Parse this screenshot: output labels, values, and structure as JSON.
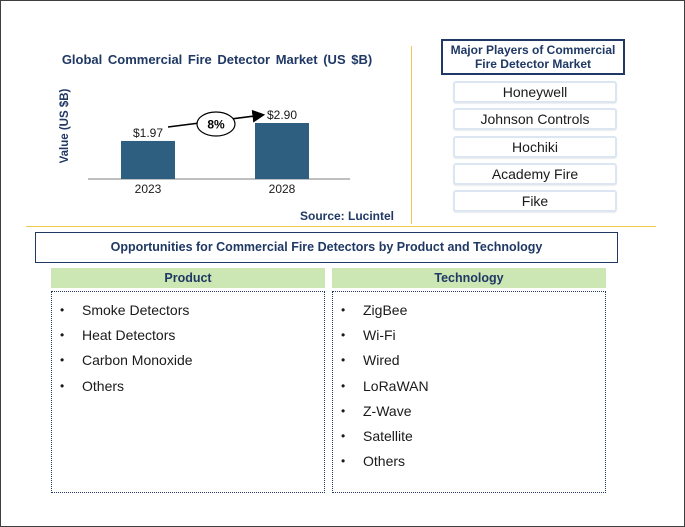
{
  "chart_data": {
    "type": "bar",
    "title": "Global  Commercial  Fire Detector Market  (US $B)",
    "ylabel": "Value (US $B)",
    "xlabel": "",
    "categories": [
      "2023",
      "2028"
    ],
    "values": [
      1.97,
      2.9
    ],
    "value_labels": [
      "$1.97",
      "$2.90"
    ],
    "ylim": [
      0,
      3.2
    ],
    "grid": false,
    "legend": "none",
    "bar_color": "#2e5e80",
    "growth_annotation": "8%"
  },
  "source": "Source: Lucintel",
  "players": {
    "title": "Major Players of Commercial Fire Detector Market",
    "items": [
      "Honeywell",
      "Johnson Controls",
      "Hochiki",
      "Academy Fire",
      "Fike"
    ]
  },
  "opportunities": {
    "title": "Opportunities for Commercial Fire Detectors by Product and Technology",
    "bullet": "•",
    "product": {
      "header": "Product",
      "items": [
        "Smoke Detectors",
        "Heat Detectors",
        "Carbon Monoxide",
        "Others"
      ]
    },
    "technology": {
      "header": "Technology",
      "items": [
        "ZigBee",
        "Wi-Fi",
        "Wired",
        "LoRaWAN",
        "Z-Wave",
        "Satellite",
        "Others"
      ]
    }
  },
  "colors": {
    "title_navy": "#1f3864",
    "header_green": "#cce6b4",
    "separator_gold": "#f2c94c",
    "player_border": "#dce6f2"
  }
}
